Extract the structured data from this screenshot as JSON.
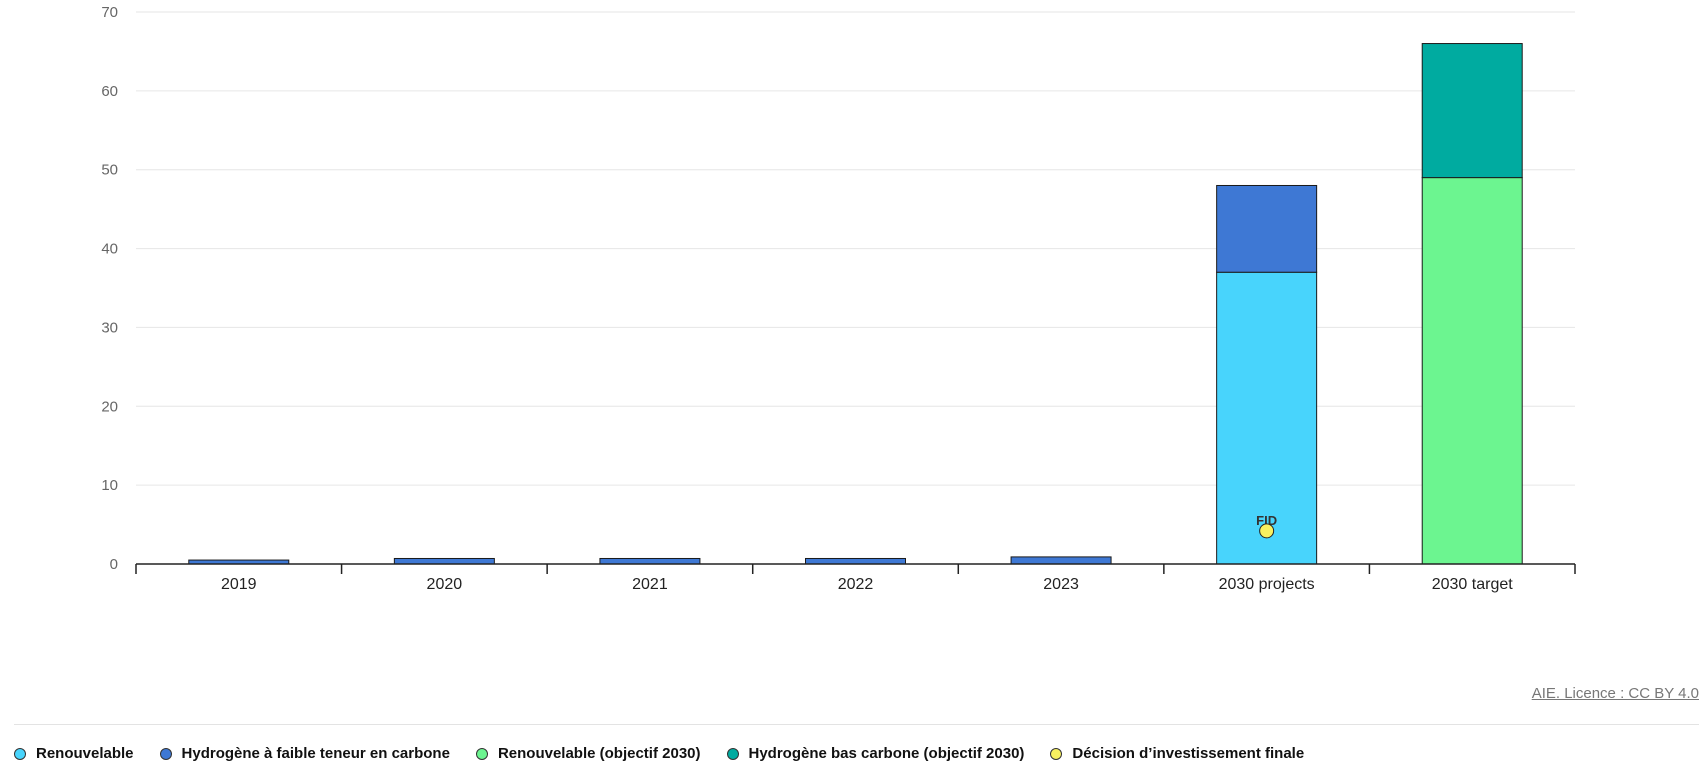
{
  "chart_data": {
    "type": "bar",
    "stacked": true,
    "categories": [
      "2019",
      "2020",
      "2021",
      "2022",
      "2023",
      "2030 projects",
      "2030 target"
    ],
    "series": [
      {
        "name": "Renouvelable",
        "color": "#48d4fc",
        "values": [
          0,
          0,
          0,
          0,
          0,
          37,
          0
        ]
      },
      {
        "name": "Hydrogène à faible teneur en carbone",
        "color": "#3e78d4",
        "values": [
          0.5,
          0.7,
          0.7,
          0.7,
          0.9,
          11,
          0
        ]
      },
      {
        "name": "Renouvelable (objectif 2030)",
        "color": "#6cf590",
        "values": [
          0,
          0,
          0,
          0,
          0,
          0,
          49
        ]
      },
      {
        "name": "Hydrogène bas carbone (objectif 2030)",
        "color": "#00aba0",
        "values": [
          0,
          0,
          0,
          0,
          0,
          0,
          17
        ]
      }
    ],
    "points": [
      {
        "name": "Décision d’investissement finale",
        "color": "#f8f060",
        "category": "2030 projects",
        "value": 4.2,
        "label": "FID"
      }
    ],
    "ylim": [
      0,
      70
    ],
    "yticks": [
      0,
      10,
      20,
      30,
      40,
      50,
      60,
      70
    ],
    "grid": true,
    "legend_position": "bottom-left"
  },
  "credit": "AIE. Licence : CC BY 4.0",
  "legend": [
    {
      "label": "Renouvelable",
      "color": "#48d4fc"
    },
    {
      "label": "Hydrogène à faible teneur en carbone",
      "color": "#3e78d4"
    },
    {
      "label": "Renouvelable (objectif 2030)",
      "color": "#6cf590"
    },
    {
      "label": "Hydrogène bas carbone (objectif 2030)",
      "color": "#00aba0"
    },
    {
      "label": "Décision d’investissement finale",
      "color": "#f8f060"
    }
  ]
}
